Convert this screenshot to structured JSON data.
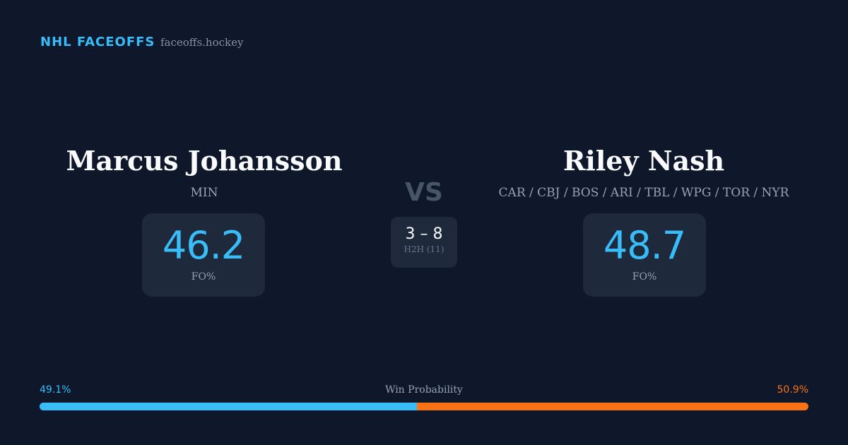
{
  "header": {
    "title": "NHL FACEOFFS",
    "site": "faceoffs.hockey"
  },
  "players": [
    {
      "name": "Marcus Johansson",
      "teams": "MIN",
      "stat": 46.2,
      "stat_label": "FO%"
    },
    {
      "name": "Riley Nash",
      "teams": "CAR / CBJ / BOS / ARI / TBL / WPG / TOR / NYR",
      "stat": 48.7,
      "stat_label": "FO%"
    }
  ],
  "versus": "VS",
  "head_to_head": {
    "score": "3 – 8",
    "label": "H2H (11)"
  },
  "win_probability": {
    "label": "Win Probability",
    "left": {
      "value": 49.1,
      "label": "49.1%",
      "color": "#38bdf8"
    },
    "right": {
      "value": 50.9,
      "label": "50.9%",
      "color": "#f97316"
    }
  }
}
